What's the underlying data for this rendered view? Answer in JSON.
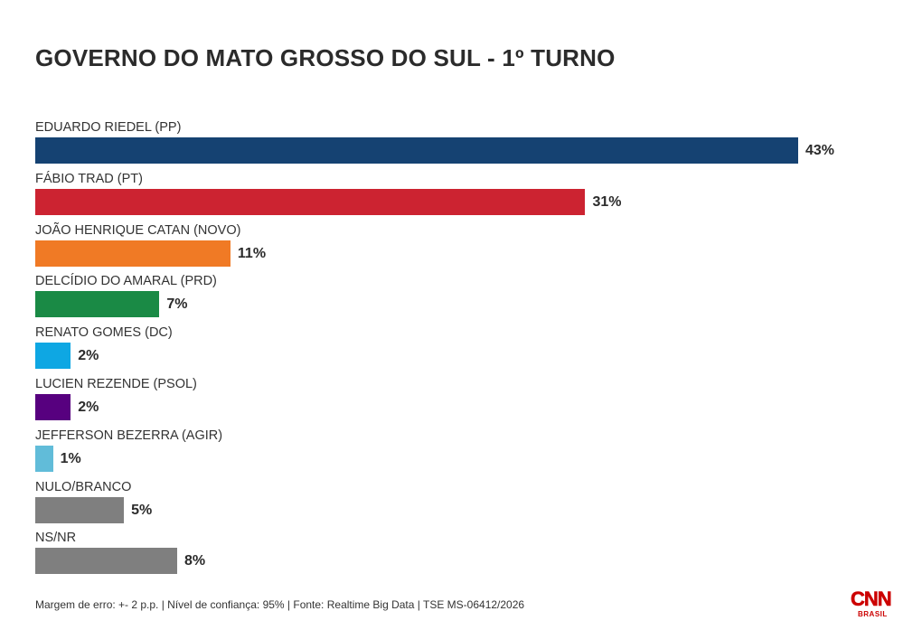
{
  "title": "GOVERNO DO MATO GROSSO DO SUL - 1º TURNO",
  "footer": "Margem de erro: +- 2 p.p. | Nível de confiança: 95% | Fonte: Realtime Big Data | TSE MS-06412/2026",
  "logo": {
    "wordmark": "CNN",
    "sub": "BRASIL",
    "color": "#cc0000"
  },
  "chart_data": {
    "type": "bar",
    "orientation": "horizontal",
    "title": "GOVERNO DO MATO GROSSO DO SUL - 1º TURNO",
    "xlabel": "",
    "ylabel": "",
    "xlim": [
      0,
      43
    ],
    "grid": false,
    "categories": [
      "EDUARDO RIEDEL (PP)",
      "FÁBIO TRAD (PT)",
      "JOÃO HENRIQUE CATAN (NOVO)",
      "DELCÍDIO DO AMARAL (PRD)",
      "RENATO GOMES (DC)",
      "LUCIEN REZENDE (PSOL)",
      "JEFFERSON BEZERRA (AGIR)",
      "NULO/BRANCO",
      "NS/NR"
    ],
    "values": [
      43,
      31,
      11,
      7,
      2,
      2,
      1,
      5,
      8
    ],
    "value_labels": [
      "43%",
      "31%",
      "11%",
      "7%",
      "2%",
      "2%",
      "1%",
      "5%",
      "8%"
    ],
    "colors": [
      "#154272",
      "#cc2331",
      "#f07a25",
      "#1a8a45",
      "#0ea7e3",
      "#57007f",
      "#61bcd9",
      "#7f7f7f",
      "#7f7f7f"
    ]
  }
}
